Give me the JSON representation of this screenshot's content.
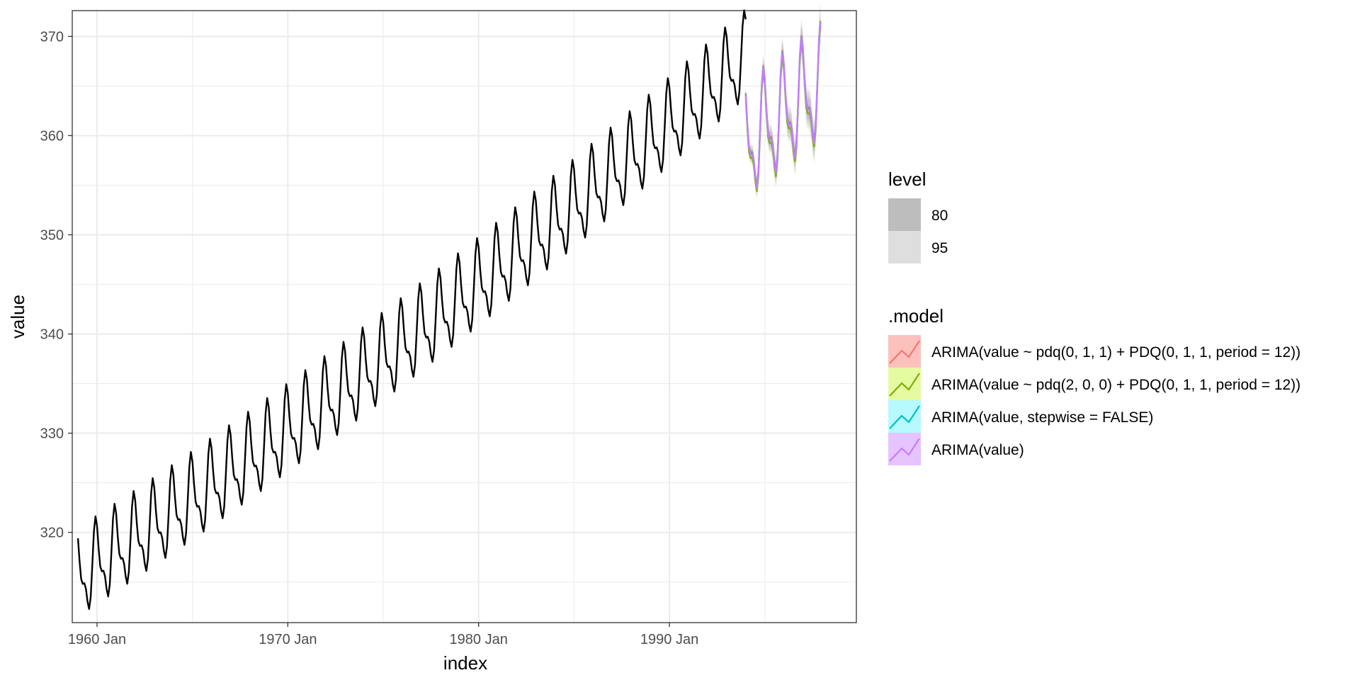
{
  "chart_data": {
    "type": "line",
    "title": "",
    "xlabel": "index",
    "ylabel": "value",
    "xlim": [
      1958.7,
      1999.8
    ],
    "ylim": [
      310.9,
      372.6
    ],
    "x_ticks": [
      {
        "value": 1960,
        "label": "1960 Jan"
      },
      {
        "value": 1970,
        "label": "1970 Jan"
      },
      {
        "value": 1980,
        "label": "1980 Jan"
      },
      {
        "value": 1990,
        "label": "1990 Jan"
      }
    ],
    "y_ticks": [
      320,
      330,
      340,
      350,
      360,
      370
    ],
    "grid": true,
    "legend_position": "right",
    "series": [
      {
        "name": "",
        "kind": "observed",
        "color": "#000000",
        "trend": {
          "start_year": 1959,
          "end_year": 1994,
          "start_value": 315.5,
          "slope_per_year": 1.25,
          "acceleration": 0.007
        },
        "seasonal_amplitude": [
          3.5,
          -0.6,
          -3.3,
          0.4
        ]
      }
    ],
    "forecast": {
      "start_year": 1994.0,
      "end_year": 1997.95,
      "start_value": 359.0,
      "slope_per_year": 1.5,
      "models": [
        {
          "name": "ARIMA(value ~ pdq(0, 1, 1) + PDQ(0, 1, 1, period = 12))",
          "color": "#F8766D",
          "band_color": "#F8766D",
          "offset": 0.25
        },
        {
          "name": "ARIMA(value ~ pdq(2, 0, 0) + PDQ(0, 1, 1, period = 12))",
          "color": "#7CAE00",
          "band_color": "#C7F531",
          "offset": -0.35
        },
        {
          "name": "ARIMA(value, stepwise = FALSE)",
          "color": "#00BFC4",
          "band_color": "#5DF2FF",
          "offset": 0.1
        },
        {
          "name": "ARIMA(value)",
          "color": "#C77CFF",
          "band_color": "#C77CFF",
          "offset": 0.0
        }
      ]
    },
    "legends": {
      "level": {
        "title": "level",
        "items": [
          {
            "label": "80",
            "color": "#BDBDBD"
          },
          {
            "label": "95",
            "color": "#DEDEDE"
          }
        ]
      },
      "model": {
        "title": ".model"
      }
    }
  }
}
